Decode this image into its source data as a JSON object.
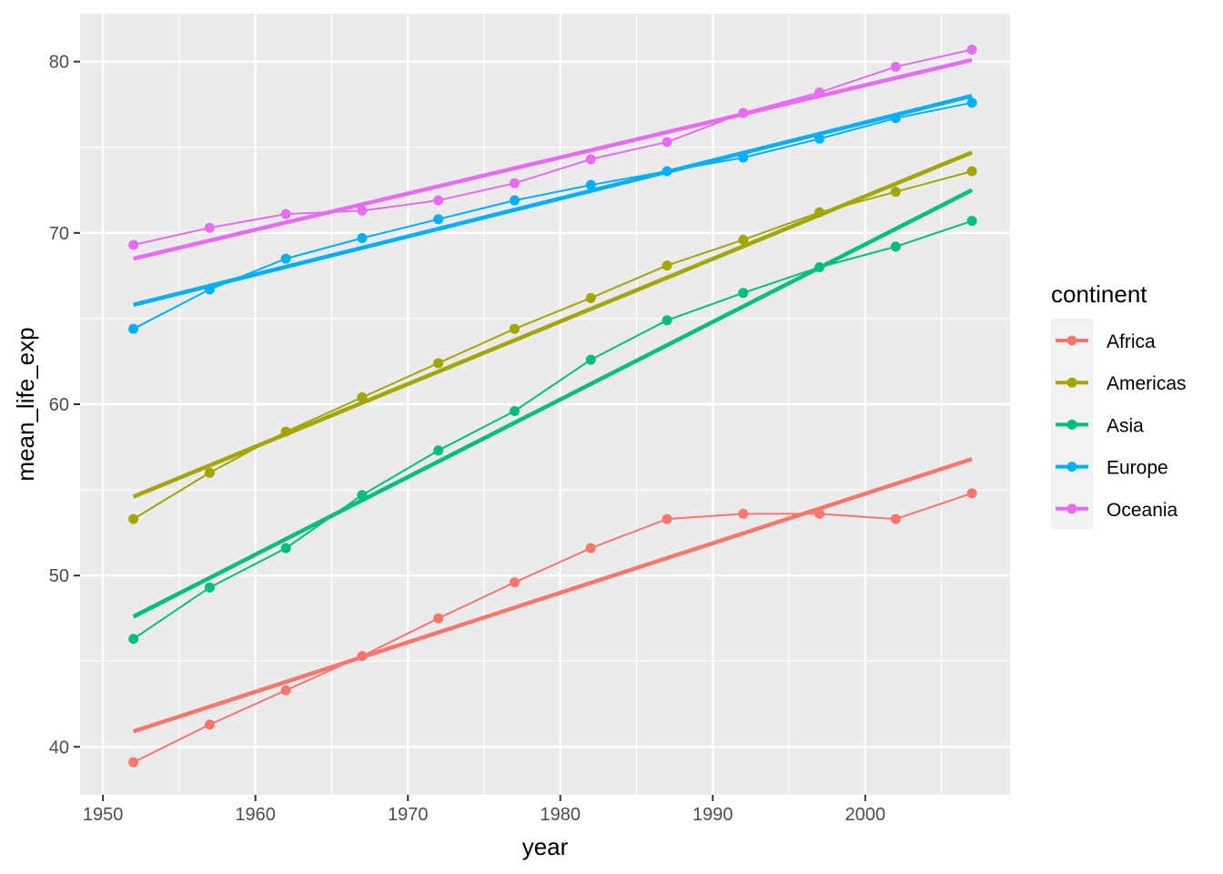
{
  "chart_data": {
    "type": "line",
    "xlabel": "year",
    "ylabel": "mean_life_exp",
    "xlim": [
      1948.5,
      2009.5
    ],
    "ylim": [
      37.2,
      82.8
    ],
    "x_ticks": [
      1950,
      1960,
      1970,
      1980,
      1990,
      2000
    ],
    "x_tick_labels": [
      "1950",
      "1960",
      "1970",
      "1980",
      "1990",
      "2000"
    ],
    "y_ticks": [
      40,
      50,
      60,
      70,
      80
    ],
    "y_tick_labels": [
      "40",
      "50",
      "60",
      "70",
      "80"
    ],
    "grid": true,
    "panel_background": "#ebebeb",
    "legend": {
      "title": "continent",
      "position": "right"
    },
    "x": [
      1952,
      1957,
      1962,
      1967,
      1972,
      1977,
      1982,
      1987,
      1992,
      1997,
      2002,
      2007
    ],
    "series": [
      {
        "name": "Africa",
        "color": "#F8766D",
        "values": [
          39.1,
          41.3,
          43.3,
          45.3,
          47.5,
          49.6,
          51.6,
          53.3,
          53.6,
          53.6,
          53.3,
          54.8
        ],
        "trend": [
          40.9,
          56.8
        ]
      },
      {
        "name": "Americas",
        "color": "#A3A500",
        "values": [
          53.3,
          56.0,
          58.4,
          60.4,
          62.4,
          64.4,
          66.2,
          68.1,
          69.6,
          71.2,
          72.4,
          73.6
        ],
        "trend": [
          54.6,
          74.7
        ]
      },
      {
        "name": "Asia",
        "color": "#00BF7D",
        "values": [
          46.3,
          49.3,
          51.6,
          54.7,
          57.3,
          59.6,
          62.6,
          64.9,
          66.5,
          68.0,
          69.2,
          70.7
        ],
        "trend": [
          47.6,
          72.5
        ]
      },
      {
        "name": "Europe",
        "color": "#00B0F6",
        "values": [
          64.4,
          66.7,
          68.5,
          69.7,
          70.8,
          71.9,
          72.8,
          73.6,
          74.4,
          75.5,
          76.7,
          77.6
        ],
        "trend": [
          65.8,
          78.0
        ]
      },
      {
        "name": "Oceania",
        "color": "#E76BF3",
        "values": [
          69.3,
          70.3,
          71.1,
          71.3,
          71.9,
          72.9,
          74.3,
          75.3,
          77.0,
          78.2,
          79.7,
          80.7
        ],
        "trend": [
          68.5,
          80.1
        ]
      }
    ]
  }
}
